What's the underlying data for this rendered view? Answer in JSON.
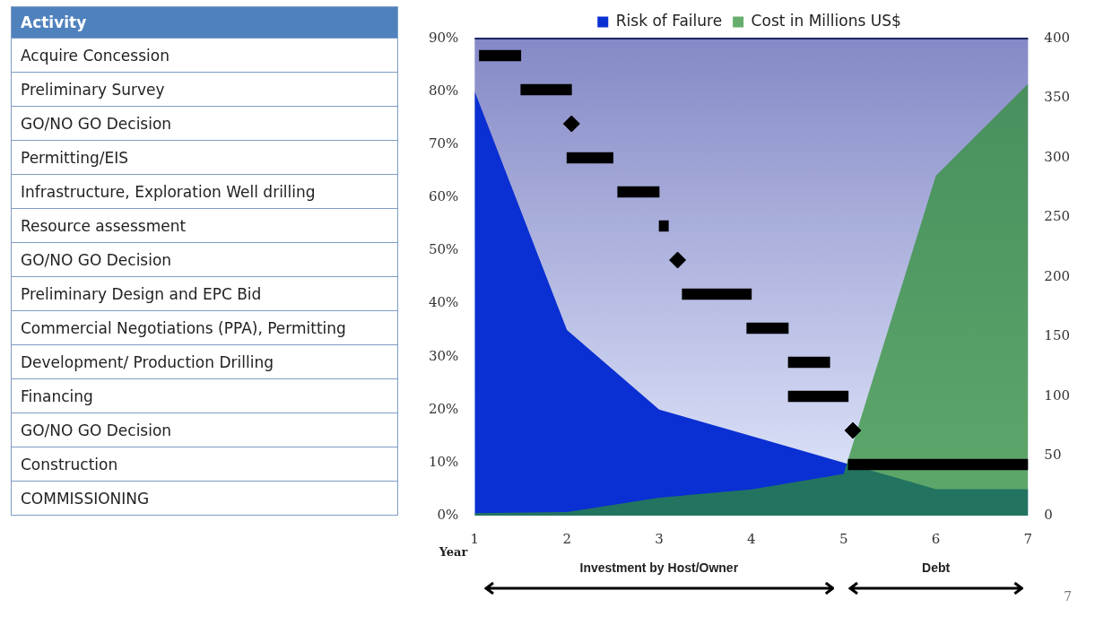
{
  "chart_data": [
    {
      "type": "bar",
      "orientation": "horizontal",
      "ylabel": "Activity",
      "tick_labels": "y",
      "xlim": [
        1,
        7
      ],
      "xticks": [
        1,
        2,
        3,
        4,
        5,
        6,
        7
      ],
      "categories": [
        "Acquire Concession",
        "Preliminary Survey",
        "GO/NO GO Decision",
        "Permitting/EIS",
        "Infrastructure, Exploration Well drilling",
        "Resource assessment",
        "GO/NO GO Decision",
        "Preliminary Design and EPC Bid",
        "Commercial Negotiations (PPA), Permitting",
        "Development/ Production Drilling",
        "Financing",
        "GO/NO GO Decision",
        "Construction",
        "COMMISSIONING"
      ],
      "series": [
        {
          "color": "#000000",
          "base": [
            1.05,
            1.5,
            null,
            2.0,
            2.55,
            3.0,
            null,
            3.25,
            3.95,
            4.4,
            4.4,
            null,
            5.05,
            null
          ],
          "values": [
            0.45,
            0.55,
            null,
            0.5,
            0.45,
            0.1,
            null,
            0.75,
            0.45,
            0.45,
            0.65,
            null,
            1.95,
            null
          ]
        },
        {
          "type": "scatter",
          "marker": "diamond",
          "color": "#000000",
          "values": [
            null,
            null,
            2.05,
            null,
            null,
            null,
            3.2,
            null,
            null,
            null,
            null,
            5.1,
            null,
            null
          ]
        }
      ]
    },
    {
      "type": "area",
      "xlabel": "Year",
      "legend": "top",
      "x": [
        1,
        2,
        3,
        4,
        5,
        6,
        7
      ],
      "xlim": [
        1,
        7
      ],
      "xticks": [
        1,
        2,
        3,
        4,
        5,
        6,
        7
      ],
      "ylim": [
        0,
        90
      ],
      "yticks": [
        {
          "value": 0,
          "label": "0%"
        },
        {
          "value": 10,
          "label": "10%"
        },
        {
          "value": 20,
          "label": "20%"
        },
        {
          "value": 30,
          "label": "30%"
        },
        {
          "value": 40,
          "label": "40%"
        },
        {
          "value": 50,
          "label": "50%"
        },
        {
          "value": 60,
          "label": "60%"
        },
        {
          "value": 70,
          "label": "70%"
        },
        {
          "value": 80,
          "label": "80%"
        },
        {
          "value": 90,
          "label": "90%"
        }
      ],
      "y2lim": [
        0,
        400
      ],
      "y2ticks": [
        0,
        50,
        100,
        150,
        200,
        250,
        300,
        350,
        400
      ],
      "series": [
        {
          "name": "Risk of Failure",
          "color": "#0a2fd2",
          "values": [
            80,
            35,
            20,
            15,
            10,
            5,
            5
          ]
        },
        {
          "name": "Cost in Millions US$",
          "color": "#2d8f33",
          "axis": "y2",
          "values": [
            2,
            3,
            15,
            22,
            35,
            285,
            362
          ]
        }
      ],
      "annotations": [
        "Investment by Host/Owner",
        "Debt",
        "7"
      ]
    }
  ]
}
